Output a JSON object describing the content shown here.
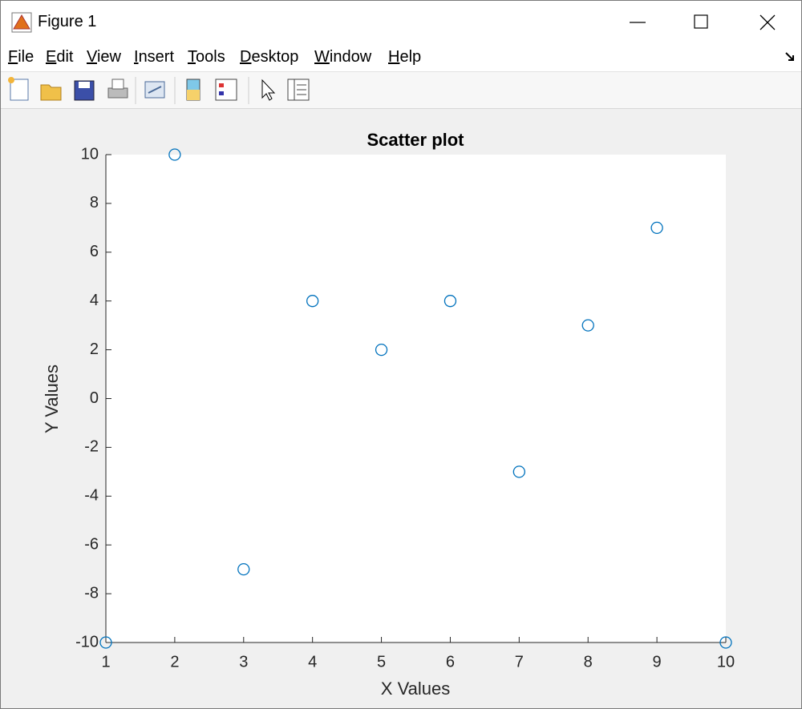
{
  "window": {
    "title": "Figure 1"
  },
  "menu": [
    "File",
    "Edit",
    "View",
    "Insert",
    "Tools",
    "Desktop",
    "Window",
    "Help"
  ],
  "chart_data": {
    "type": "scatter",
    "title": "Scatter plot",
    "x_label": "X Values",
    "y_label": "Y Values",
    "x": [
      1,
      2,
      3,
      4,
      5,
      6,
      7,
      8,
      9,
      10
    ],
    "values": [
      -10,
      10,
      -7,
      4,
      2,
      4,
      -3,
      3,
      7,
      -10
    ],
    "color": "#0072bd",
    "xlim": [
      1,
      10
    ],
    "ylim": [
      -10,
      10
    ],
    "xticks": [
      1,
      2,
      3,
      4,
      5,
      6,
      7,
      8,
      9,
      10
    ],
    "yticks": [
      -10,
      -8,
      -6,
      -4,
      -2,
      0,
      2,
      4,
      6,
      8,
      10
    ],
    "grid": false
  }
}
